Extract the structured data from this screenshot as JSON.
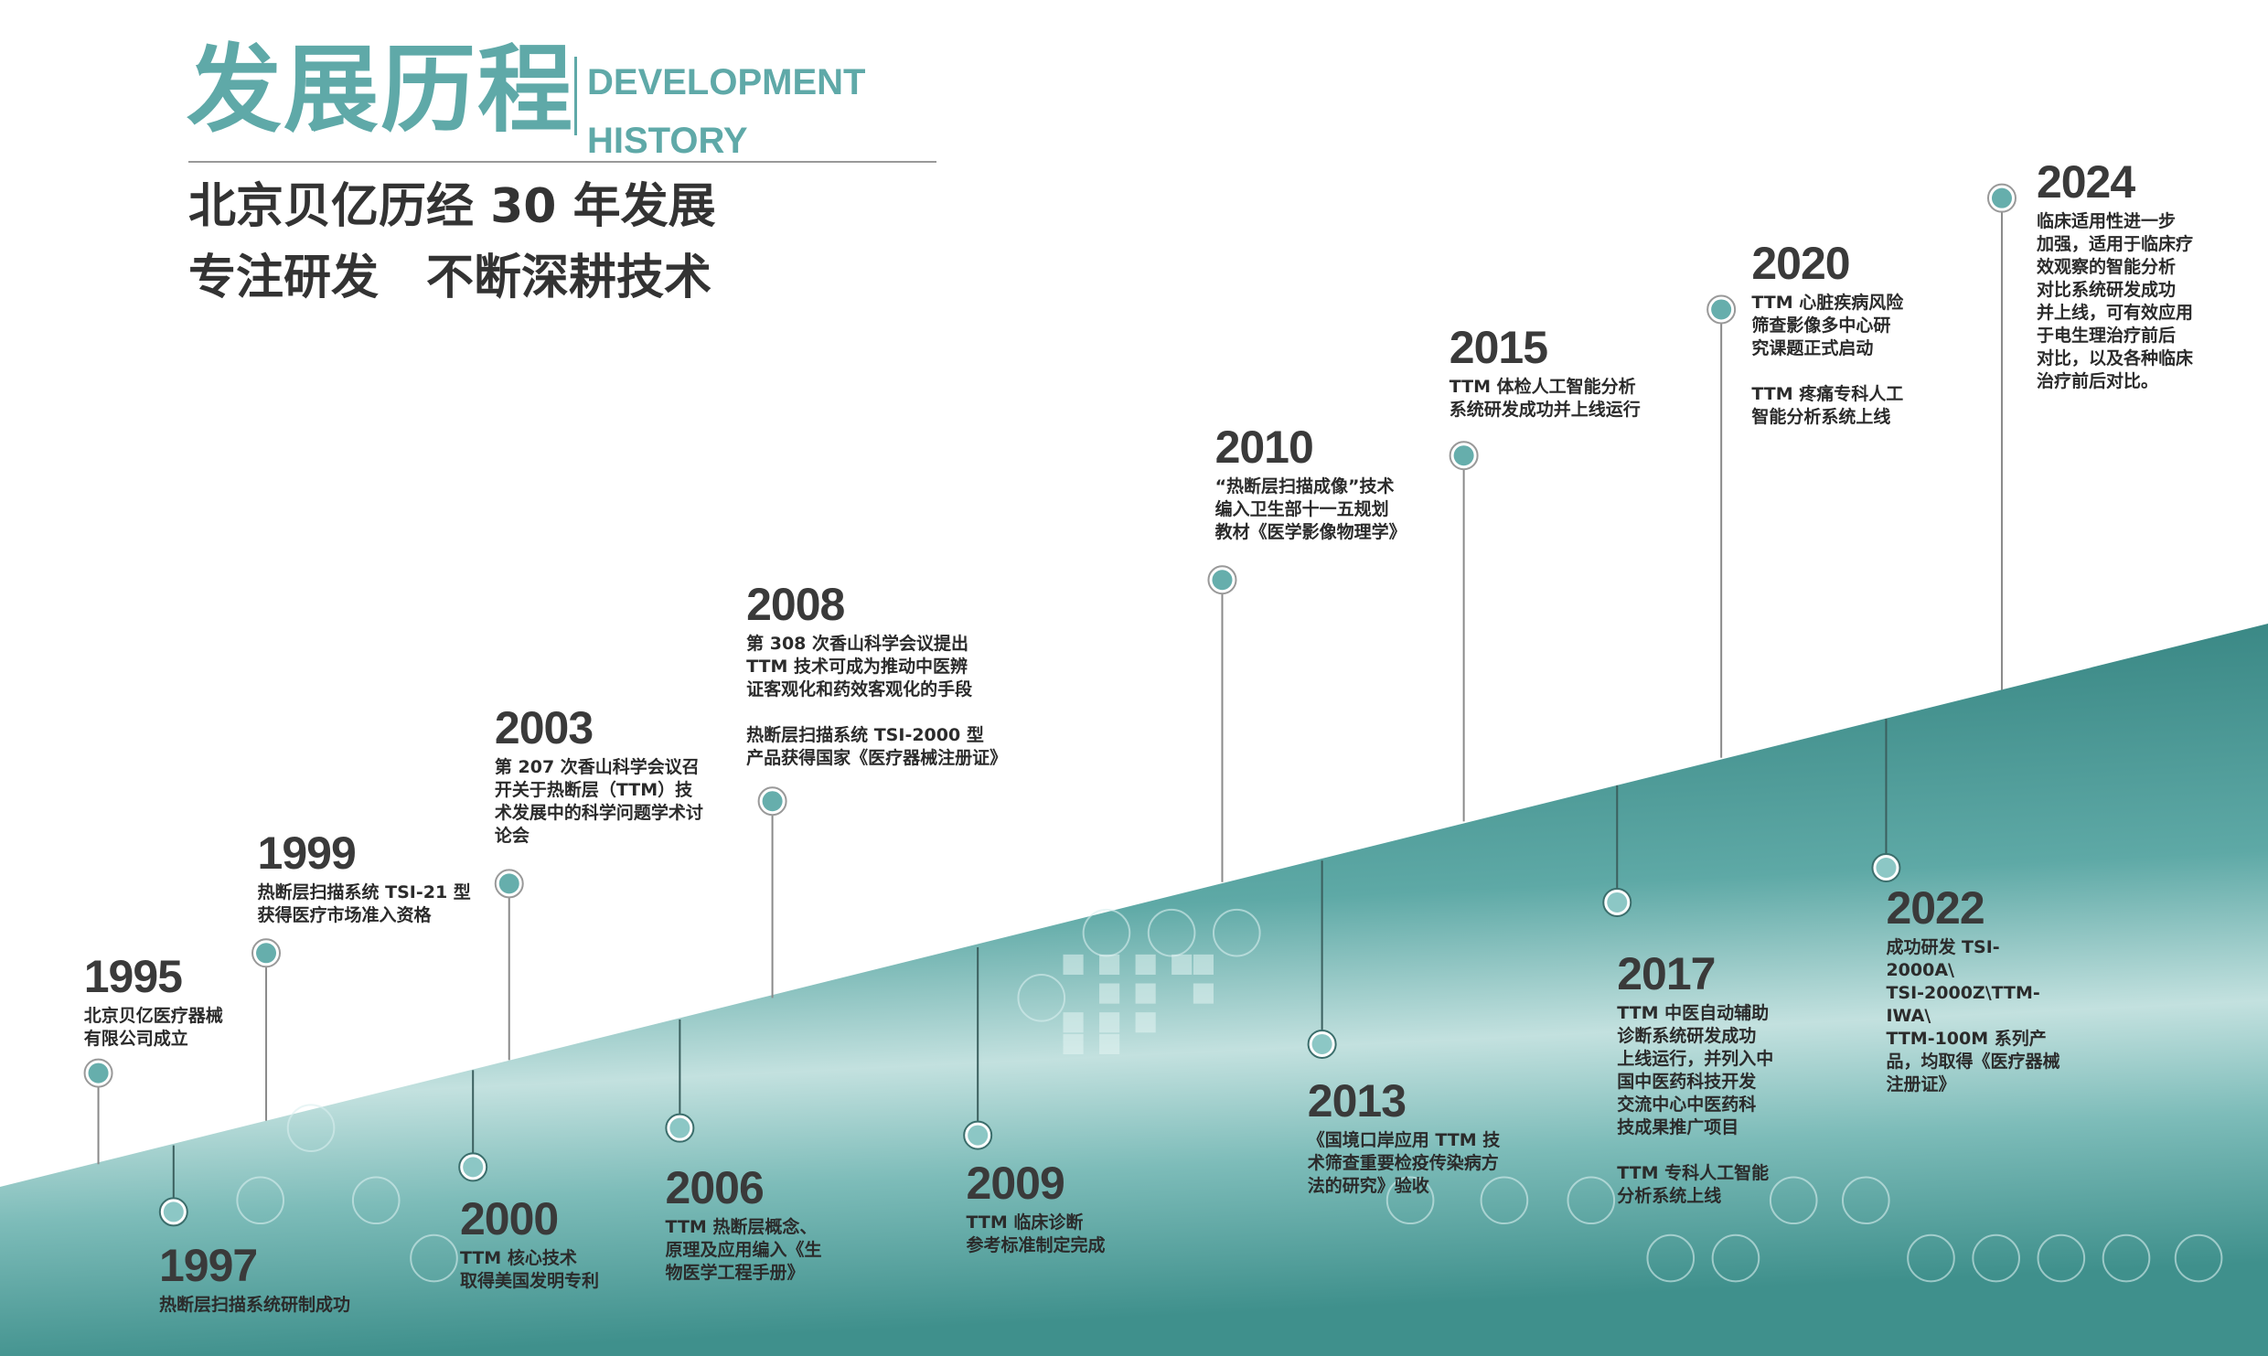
{
  "header": {
    "title_cn": "发展历程",
    "title_en_line1": "DEVELOPMENT",
    "title_en_line2": "HISTORY",
    "subtitle_line1": "北京贝亿历经 30 年发展",
    "subtitle_line2": "专注研发　不断深耕技术"
  },
  "colors": {
    "accent": "#5fa9a8",
    "text": "#333333",
    "band_dark": "#2f7d7a",
    "band_light": "#b9dcdb"
  },
  "events": [
    {
      "year": "1995",
      "paragraphs": [
        [
          "北京贝亿医疗器械",
          "有限公司成立"
        ]
      ]
    },
    {
      "year": "1997",
      "paragraphs": [
        [
          "热断层扫描系统研制成功"
        ]
      ]
    },
    {
      "year": "1999",
      "paragraphs": [
        [
          "热断层扫描系统 TSI-21 型",
          "获得医疗市场准入资格"
        ]
      ]
    },
    {
      "year": "2000",
      "paragraphs": [
        [
          "TTM 核心技术",
          "取得美国发明专利"
        ]
      ]
    },
    {
      "year": "2003",
      "paragraphs": [
        [
          "第 207 次香山科学会议召",
          "开关于热断层（TTM）技",
          "术发展中的科学问题学术讨",
          "论会"
        ]
      ]
    },
    {
      "year": "2006",
      "paragraphs": [
        [
          "TTM 热断层概念、",
          "原理及应用编入《生",
          "物医学工程手册》"
        ]
      ]
    },
    {
      "year": "2008",
      "paragraphs": [
        [
          "第 308 次香山科学会议提出",
          "TTM 技术可成为推动中医辨",
          "证客观化和药效客观化的手段"
        ],
        [
          "热断层扫描系统 TSI-2000 型",
          "产品获得国家《医疗器械注册证》"
        ]
      ]
    },
    {
      "year": "2009",
      "paragraphs": [
        [
          "TTM 临床诊断",
          "参考标准制定完成"
        ]
      ]
    },
    {
      "year": "2010",
      "paragraphs": [
        [
          "“热断层扫描成像”技术",
          "编入卫生部十一五规划",
          "教材《医学影像物理学》"
        ]
      ]
    },
    {
      "year": "2013",
      "paragraphs": [
        [
          "《国境口岸应用 TTM 技",
          "术筛查重要检疫传染病方",
          "法的研究》验收"
        ]
      ]
    },
    {
      "year": "2015",
      "paragraphs": [
        [
          "TTM 体检人工智能分析",
          "系统研发成功并上线运行"
        ]
      ]
    },
    {
      "year": "2017",
      "paragraphs": [
        [
          "TTM 中医自动辅助",
          "诊断系统研发成功",
          "上线运行，并列入中",
          "国中医药科技开发",
          "交流中心中医药科",
          "技成果推广项目"
        ],
        [
          "TTM 专科人工智能",
          "分析系统上线"
        ]
      ]
    },
    {
      "year": "2020",
      "paragraphs": [
        [
          "TTM 心脏疾病风险",
          "筛查影像多中心研",
          "究课题正式启动"
        ],
        [
          "TTM 疼痛专科人工",
          "智能分析系统上线"
        ]
      ]
    },
    {
      "year": "2022",
      "paragraphs": [
        [
          "成功研发 TSI-",
          "2000A\\",
          "TSI-2000Z\\TTM-",
          "IWA\\",
          "TTM-100M 系列产",
          "品，均取得《医疗器械",
          "注册证》"
        ]
      ]
    },
    {
      "year": "2024",
      "paragraphs": [
        [
          "临床适用性进一步",
          "加强，适用于临床疗",
          "效观察的智能分析",
          "对比系统研发成功",
          "并上线，可有效应用",
          "于电生理治疗前后",
          "对比，以及各种临床",
          "治疗前后对比。"
        ]
      ]
    }
  ]
}
